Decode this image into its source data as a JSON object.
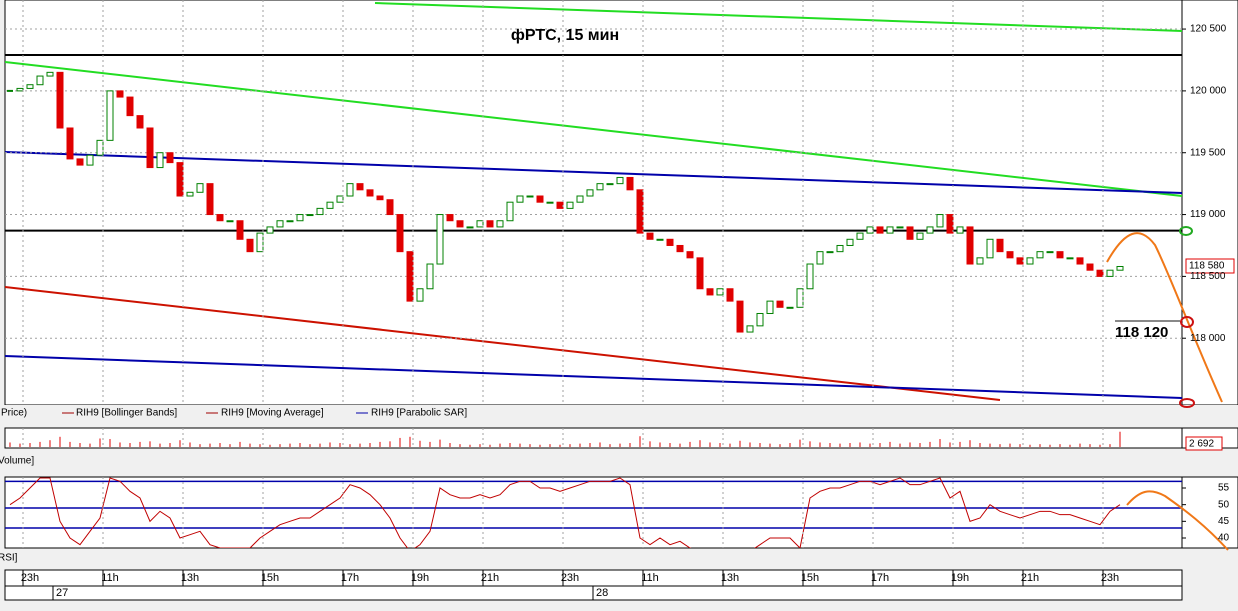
{
  "chart_data": [
    {
      "type": "candlestick",
      "title": "фРТС,  15 мин",
      "close": [
        120000,
        120020,
        120050,
        120120,
        120150,
        119700,
        119450,
        119400,
        119480,
        119600,
        120000,
        119950,
        119800,
        119700,
        119380,
        119500,
        119420,
        119150,
        119180,
        119250,
        119000,
        118950,
        118950,
        118800,
        118700,
        118850,
        118900,
        118950,
        118950,
        119000,
        119000,
        119050,
        119100,
        119150,
        119250,
        119200,
        119150,
        119120,
        119000,
        118700,
        118300,
        118400,
        118600,
        119000,
        118950,
        118900,
        118900,
        118950,
        118900,
        118950,
        119100,
        119150,
        119150,
        119100,
        119100,
        119050,
        119100,
        119150,
        119200,
        119250,
        119250,
        119300,
        119200,
        118850,
        118800,
        118800,
        118750,
        118700,
        118650,
        118400,
        118350,
        118400,
        118300,
        118050,
        118100,
        118200,
        118300,
        118250,
        118250,
        118400,
        118600,
        118700,
        118700,
        118750,
        118800,
        118850,
        118900,
        118850,
        118900,
        118900,
        118800,
        118850,
        118900,
        119000,
        118850,
        118900,
        118600,
        118650,
        118800,
        118700,
        118650,
        118600,
        118650,
        118700,
        118700,
        118650,
        118650,
        118600,
        118550,
        118500,
        118550,
        118580
      ],
      "ylim": [
        117460,
        120735
      ],
      "yticks": [
        {
          "value": 118000,
          "label": "118 000"
        },
        {
          "value": 118500,
          "label": "118 500"
        },
        {
          "value": 119000,
          "label": "119 000"
        },
        {
          "value": 119500,
          "label": "119 500"
        },
        {
          "value": 120000,
          "label": "120 000"
        },
        {
          "value": 120500,
          "label": "120 500"
        }
      ],
      "levels": [
        120290,
        118870
      ],
      "legend": [
        "Price)",
        "RIH9 [Bollinger Bands]",
        "RIH9 [Moving Average]",
        "RIH9 [Parabolic SAR]"
      ],
      "last_label": "118 580",
      "annotation": "118 120",
      "up_color": "#008000",
      "down_color": "#e00000",
      "grid": true
    },
    {
      "type": "bar",
      "ylabel": "Volume]",
      "values": [
        800,
        600,
        700,
        900,
        1200,
        1800,
        900,
        700,
        600,
        1500,
        1400,
        800,
        700,
        900,
        1000,
        600,
        700,
        1200,
        800,
        500,
        600,
        700,
        500,
        900,
        600,
        500,
        400,
        500,
        600,
        700,
        500,
        600,
        800,
        700,
        500,
        600,
        700,
        900,
        1000,
        1600,
        1800,
        1100,
        900,
        1300,
        700,
        500,
        400,
        500,
        400,
        600,
        700,
        600,
        500,
        400,
        500,
        400,
        500,
        600,
        700,
        800,
        500,
        600,
        700,
        1900,
        1000,
        800,
        700,
        600,
        900,
        1200,
        800,
        700,
        600,
        1100,
        800,
        700,
        600,
        500,
        700,
        1300,
        1000,
        800,
        700,
        600,
        700,
        800,
        600,
        700,
        900,
        600,
        800,
        700,
        900,
        1400,
        800,
        900,
        1200,
        700,
        600,
        500,
        600,
        500,
        400,
        500,
        400,
        500,
        400,
        600,
        500,
        400,
        500,
        2692
      ],
      "ylim": [
        0,
        3000
      ],
      "value_label": "2 692",
      "color": "#e00000"
    },
    {
      "type": "line",
      "ylabel": "RSI]",
      "values": [
        50,
        52,
        55,
        58,
        58,
        45,
        40,
        38,
        42,
        46,
        58,
        57,
        54,
        52,
        45,
        48,
        46,
        40,
        41,
        42,
        38,
        37,
        37,
        37,
        37,
        40,
        42,
        44,
        45,
        46,
        46,
        48,
        50,
        52,
        56,
        55,
        53,
        50,
        46,
        40,
        36,
        38,
        42,
        55,
        53,
        52,
        52,
        53,
        52,
        53,
        56,
        57,
        57,
        55,
        55,
        54,
        55,
        56,
        57,
        57,
        57,
        58,
        56,
        40,
        38,
        40,
        38,
        39,
        37,
        36,
        35,
        36,
        36,
        35,
        36,
        38,
        40,
        40,
        40,
        37,
        52,
        54,
        55,
        55,
        56,
        57,
        57,
        56,
        57,
        58,
        56,
        56,
        57,
        58,
        52,
        54,
        45,
        46,
        50,
        48,
        47,
        46,
        47,
        48,
        48,
        47,
        47,
        46,
        45,
        44,
        48,
        50
      ],
      "ylim": [
        37,
        58.3
      ],
      "yticks": [
        40,
        45,
        50,
        55
      ],
      "levels": [
        57,
        49,
        43
      ],
      "color": "#c00000"
    }
  ],
  "time_axis": {
    "ticks": [
      {
        "value": 2,
        "label": "23h"
      },
      {
        "value": 10,
        "label": "11h"
      },
      {
        "value": 18,
        "label": "13h"
      },
      {
        "value": 26,
        "label": "15h"
      },
      {
        "value": 34,
        "label": "17h"
      },
      {
        "value": 41,
        "label": "19h"
      },
      {
        "value": 48,
        "label": "21h"
      },
      {
        "value": 56,
        "label": "23h"
      },
      {
        "value": 64,
        "label": "11h"
      },
      {
        "value": 72,
        "label": "13h"
      },
      {
        "value": 80,
        "label": "15h"
      },
      {
        "value": 87,
        "label": "17h"
      },
      {
        "value": 95,
        "label": "19h"
      },
      {
        "value": 102,
        "label": "21h"
      },
      {
        "value": 110,
        "label": "23h"
      }
    ],
    "dates": [
      {
        "value": 5,
        "label": "27"
      },
      {
        "value": 59,
        "label": "28"
      }
    ]
  }
}
